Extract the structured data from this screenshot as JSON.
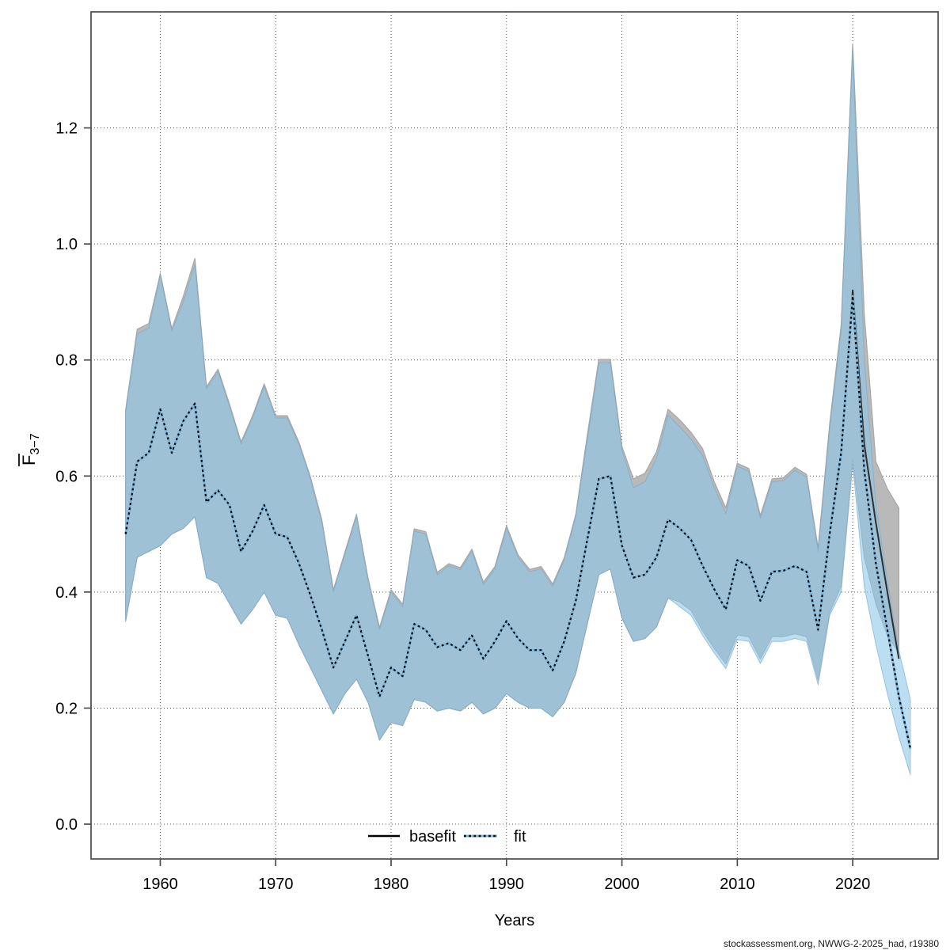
{
  "watermark": "stockassessment.org, NWWG-2-2025_had, r19380",
  "chart_data": {
    "type": "line",
    "title": "",
    "xlabel": "Years",
    "ylabel_main": "F",
    "ylabel_sub": "3−7",
    "x_ticks": [
      1960,
      1970,
      1980,
      1990,
      2000,
      2010,
      2020
    ],
    "y_ticks": [
      0.0,
      0.2,
      0.4,
      0.6,
      0.8,
      1.0,
      1.2
    ],
    "y_tick_labels": [
      "0.0",
      "0.2",
      "0.4",
      "0.6",
      "0.8",
      "1.0",
      "1.2"
    ],
    "xlim": [
      1954.0,
      2027.4
    ],
    "ylim": [
      -0.06,
      1.4
    ],
    "grid": "dotted",
    "legend": {
      "position": "bottom-center",
      "items": [
        {
          "label": "basefit",
          "style": "solid",
          "color": "#000000"
        },
        {
          "label": "fit",
          "style": "dotted",
          "color": "#7fb6da"
        }
      ]
    },
    "colors": {
      "basefit_band": "#b9b9b9",
      "basefit_band_edge": "#a6a6a6",
      "basefit_line": "#2e2e2e",
      "fit_band": "rgba(140,198,232,0.58)",
      "fit_band_edge": "rgba(120,170,205,0.65)",
      "fit_underlay": "#7fb6da",
      "fit_dash": "#0a0a0a",
      "axis": "#4c4c4c",
      "grid": "#3f3f3f",
      "text": "#000000"
    },
    "series": [
      {
        "name": "basefit",
        "years": [
          1957,
          1958,
          1959,
          1960,
          1961,
          1962,
          1963,
          1964,
          1965,
          1966,
          1967,
          1968,
          1969,
          1970,
          1971,
          1972,
          1973,
          1974,
          1975,
          1976,
          1977,
          1978,
          1979,
          1980,
          1981,
          1982,
          1983,
          1984,
          1985,
          1986,
          1987,
          1988,
          1989,
          1990,
          1991,
          1992,
          1993,
          1994,
          1995,
          1996,
          1997,
          1998,
          1999,
          2000,
          2001,
          2002,
          2003,
          2004,
          2005,
          2006,
          2007,
          2008,
          2009,
          2010,
          2011,
          2012,
          2013,
          2014,
          2015,
          2016,
          2017,
          2018,
          2019,
          2020,
          2021,
          2022,
          2023,
          2024
        ],
        "center": [
          0.5,
          0.625,
          0.64,
          0.715,
          0.64,
          0.695,
          0.725,
          0.555,
          0.575,
          0.55,
          0.47,
          0.505,
          0.55,
          0.5,
          0.495,
          0.45,
          0.395,
          0.335,
          0.27,
          0.315,
          0.36,
          0.29,
          0.22,
          0.27,
          0.255,
          0.345,
          0.335,
          0.305,
          0.312,
          0.3,
          0.325,
          0.285,
          0.315,
          0.35,
          0.32,
          0.3,
          0.3,
          0.265,
          0.315,
          0.385,
          0.49,
          0.595,
          0.6,
          0.48,
          0.425,
          0.43,
          0.46,
          0.525,
          0.51,
          0.49,
          0.445,
          0.405,
          0.37,
          0.455,
          0.445,
          0.385,
          0.435,
          0.437,
          0.445,
          0.435,
          0.335,
          0.5,
          0.64,
          0.92,
          0.655,
          0.52,
          0.4,
          0.285
        ],
        "lo": [
          0.35,
          0.46,
          0.47,
          0.48,
          0.5,
          0.51,
          0.53,
          0.425,
          0.415,
          0.38,
          0.345,
          0.37,
          0.4,
          0.36,
          0.355,
          0.31,
          0.27,
          0.23,
          0.19,
          0.225,
          0.25,
          0.21,
          0.145,
          0.175,
          0.17,
          0.215,
          0.21,
          0.195,
          0.2,
          0.195,
          0.21,
          0.19,
          0.2,
          0.225,
          0.21,
          0.2,
          0.2,
          0.185,
          0.21,
          0.26,
          0.345,
          0.43,
          0.44,
          0.355,
          0.315,
          0.32,
          0.34,
          0.39,
          0.383,
          0.368,
          0.333,
          0.303,
          0.276,
          0.326,
          0.323,
          0.285,
          0.323,
          0.323,
          0.328,
          0.323,
          0.248,
          0.365,
          0.41,
          0.63,
          0.46,
          0.38,
          0.325,
          0.295
        ],
        "hi": [
          0.714,
          0.853,
          0.863,
          0.949,
          0.854,
          0.91,
          0.975,
          0.754,
          0.784,
          0.724,
          0.659,
          0.704,
          0.759,
          0.704,
          0.704,
          0.659,
          0.599,
          0.524,
          0.404,
          0.469,
          0.534,
          0.424,
          0.339,
          0.404,
          0.379,
          0.509,
          0.504,
          0.434,
          0.449,
          0.442,
          0.474,
          0.417,
          0.444,
          0.514,
          0.464,
          0.439,
          0.444,
          0.414,
          0.459,
          0.534,
          0.67,
          0.801,
          0.801,
          0.651,
          0.595,
          0.605,
          0.642,
          0.715,
          0.697,
          0.675,
          0.647,
          0.59,
          0.545,
          0.622,
          0.613,
          0.532,
          0.595,
          0.597,
          0.615,
          0.603,
          0.476,
          0.69,
          0.86,
          1.345,
          0.88,
          0.625,
          0.578,
          0.545
        ]
      },
      {
        "name": "fit",
        "years": [
          1957,
          1958,
          1959,
          1960,
          1961,
          1962,
          1963,
          1964,
          1965,
          1966,
          1967,
          1968,
          1969,
          1970,
          1971,
          1972,
          1973,
          1974,
          1975,
          1976,
          1977,
          1978,
          1979,
          1980,
          1981,
          1982,
          1983,
          1984,
          1985,
          1986,
          1987,
          1988,
          1989,
          1990,
          1991,
          1992,
          1993,
          1994,
          1995,
          1996,
          1997,
          1998,
          1999,
          2000,
          2001,
          2002,
          2003,
          2004,
          2005,
          2006,
          2007,
          2008,
          2009,
          2010,
          2011,
          2012,
          2013,
          2014,
          2015,
          2016,
          2017,
          2018,
          2019,
          2020,
          2021,
          2022,
          2023,
          2024,
          2025
        ],
        "center": [
          0.5,
          0.625,
          0.64,
          0.715,
          0.64,
          0.695,
          0.725,
          0.555,
          0.575,
          0.55,
          0.47,
          0.505,
          0.55,
          0.5,
          0.495,
          0.45,
          0.395,
          0.335,
          0.27,
          0.315,
          0.36,
          0.29,
          0.22,
          0.27,
          0.255,
          0.345,
          0.335,
          0.305,
          0.312,
          0.3,
          0.325,
          0.285,
          0.315,
          0.35,
          0.32,
          0.3,
          0.3,
          0.265,
          0.315,
          0.385,
          0.49,
          0.595,
          0.6,
          0.48,
          0.425,
          0.43,
          0.46,
          0.525,
          0.51,
          0.49,
          0.445,
          0.405,
          0.37,
          0.455,
          0.445,
          0.385,
          0.435,
          0.437,
          0.445,
          0.435,
          0.335,
          0.5,
          0.64,
          0.91,
          0.61,
          0.45,
          0.335,
          0.22,
          0.13
        ],
        "lo": [
          0.35,
          0.46,
          0.47,
          0.48,
          0.5,
          0.51,
          0.53,
          0.425,
          0.415,
          0.38,
          0.345,
          0.37,
          0.4,
          0.36,
          0.355,
          0.31,
          0.27,
          0.23,
          0.19,
          0.225,
          0.25,
          0.21,
          0.145,
          0.175,
          0.17,
          0.215,
          0.21,
          0.195,
          0.2,
          0.195,
          0.21,
          0.19,
          0.2,
          0.225,
          0.21,
          0.2,
          0.2,
          0.185,
          0.21,
          0.26,
          0.345,
          0.43,
          0.44,
          0.355,
          0.315,
          0.32,
          0.34,
          0.39,
          0.375,
          0.36,
          0.325,
          0.295,
          0.268,
          0.318,
          0.315,
          0.277,
          0.315,
          0.315,
          0.32,
          0.315,
          0.24,
          0.36,
          0.4,
          0.62,
          0.41,
          0.31,
          0.225,
          0.15,
          0.085
        ],
        "hi": [
          0.71,
          0.845,
          0.855,
          0.945,
          0.85,
          0.9,
          0.965,
          0.75,
          0.78,
          0.72,
          0.655,
          0.7,
          0.755,
          0.7,
          0.7,
          0.655,
          0.595,
          0.52,
          0.4,
          0.465,
          0.53,
          0.42,
          0.335,
          0.4,
          0.375,
          0.505,
          0.5,
          0.43,
          0.445,
          0.438,
          0.47,
          0.413,
          0.44,
          0.51,
          0.46,
          0.435,
          0.44,
          0.41,
          0.455,
          0.53,
          0.66,
          0.795,
          0.795,
          0.645,
          0.58,
          0.59,
          0.63,
          0.705,
          0.685,
          0.663,
          0.635,
          0.58,
          0.535,
          0.617,
          0.608,
          0.527,
          0.59,
          0.592,
          0.61,
          0.598,
          0.47,
          0.68,
          0.85,
          1.335,
          0.8,
          0.55,
          0.42,
          0.3,
          0.215
        ]
      }
    ]
  }
}
